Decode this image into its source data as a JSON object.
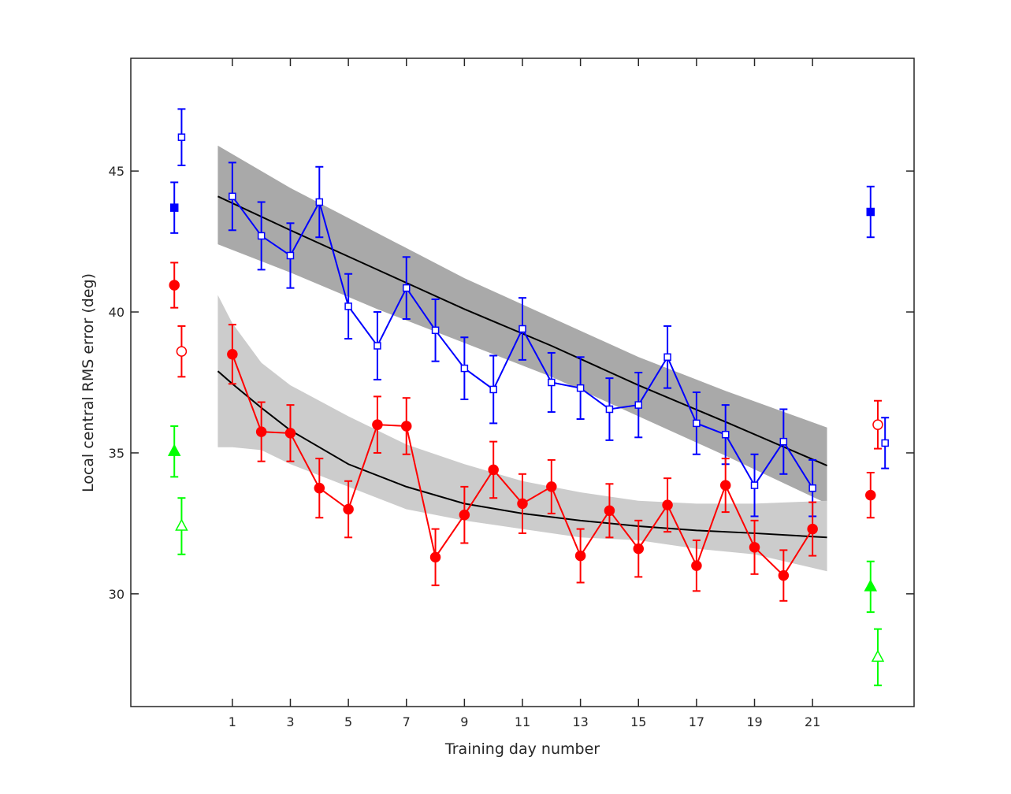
{
  "chart_data": {
    "type": "scatter",
    "title": "",
    "xlabel": "Training day number",
    "ylabel": "Local central RMS error (deg)",
    "xlim": [
      -2.5,
      24.5
    ],
    "ylim": [
      26,
      49
    ],
    "xticks": [
      1,
      3,
      5,
      7,
      9,
      11,
      13,
      15,
      17,
      19,
      21
    ],
    "yticks": [
      30,
      35,
      40,
      45
    ],
    "grid": false,
    "colors": {
      "blue": "#0000ff",
      "red": "#ff0000",
      "green": "#00ff00",
      "fit": "#000000",
      "band_blue": "#a9a9a9",
      "band_red": "#cccccc"
    },
    "training_series": [
      {
        "color": "#0000ff",
        "marker": "square-open",
        "x": [
          1,
          2,
          3,
          4,
          5,
          6,
          7,
          8,
          9,
          10,
          11,
          12,
          13,
          14,
          15,
          16,
          17,
          18,
          19,
          20,
          21
        ],
        "y": [
          44.1,
          42.7,
          42.0,
          43.9,
          40.2,
          38.8,
          40.85,
          39.35,
          38.0,
          37.25,
          39.4,
          37.5,
          37.3,
          36.55,
          36.7,
          38.4,
          36.05,
          35.65,
          33.85,
          35.4,
          33.75
        ],
        "err": [
          1.2,
          1.2,
          1.15,
          1.25,
          1.15,
          1.2,
          1.1,
          1.1,
          1.1,
          1.2,
          1.1,
          1.05,
          1.1,
          1.1,
          1.15,
          1.1,
          1.1,
          1.05,
          1.1,
          1.15,
          1.0
        ]
      },
      {
        "color": "#ff0000",
        "marker": "circle-filled",
        "x": [
          1,
          2,
          3,
          4,
          5,
          6,
          7,
          8,
          9,
          10,
          11,
          12,
          13,
          14,
          15,
          16,
          17,
          18,
          19,
          20,
          21
        ],
        "y": [
          38.5,
          35.75,
          35.7,
          33.75,
          33.0,
          36.0,
          35.95,
          31.3,
          32.8,
          34.4,
          33.2,
          33.8,
          31.35,
          32.95,
          31.6,
          33.15,
          31.0,
          33.85,
          31.65,
          30.65,
          32.3
        ],
        "err": [
          1.05,
          1.05,
          1.0,
          1.05,
          1.0,
          1.0,
          1.0,
          1.0,
          1.0,
          1.0,
          1.05,
          0.95,
          0.95,
          0.95,
          1.0,
          0.95,
          0.9,
          0.95,
          0.95,
          0.9,
          0.95
        ]
      }
    ],
    "fits": [
      {
        "color": "#000000",
        "band_color": "#a9a9a9",
        "x": [
          0.5,
          3,
          6,
          9,
          12,
          15,
          18,
          21.5
        ],
        "y": [
          44.1,
          42.9,
          41.5,
          40.1,
          38.8,
          37.4,
          36.1,
          34.55
        ],
        "upper": [
          45.9,
          44.4,
          42.8,
          41.2,
          39.8,
          38.4,
          37.2,
          35.9
        ],
        "lower": [
          42.4,
          41.4,
          40.1,
          38.9,
          37.7,
          36.3,
          34.9,
          33.2
        ]
      },
      {
        "color": "#000000",
        "band_color": "#cccccc",
        "x": [
          0.5,
          1,
          2,
          3,
          5,
          7,
          9,
          11,
          13,
          15,
          17,
          19,
          21.5
        ],
        "y": [
          37.9,
          37.45,
          36.6,
          35.8,
          34.6,
          33.8,
          33.2,
          32.85,
          32.6,
          32.4,
          32.25,
          32.15,
          32.0
        ],
        "upper": [
          40.6,
          39.6,
          38.2,
          37.4,
          36.3,
          35.3,
          34.6,
          34.0,
          33.6,
          33.3,
          33.2,
          33.2,
          33.3
        ],
        "lower": [
          35.2,
          35.2,
          35.1,
          34.6,
          33.8,
          33.0,
          32.6,
          32.3,
          32.0,
          31.9,
          31.6,
          31.4,
          30.8
        ]
      }
    ],
    "test_points": [
      {
        "phase": "pre",
        "x": -1,
        "y": 43.7,
        "err": 0.9,
        "color": "#0000ff",
        "marker": "square-filled"
      },
      {
        "phase": "pre",
        "x": -0.75,
        "y": 46.2,
        "err": 1.0,
        "color": "#0000ff",
        "marker": "square-open"
      },
      {
        "phase": "pre",
        "x": -1,
        "y": 40.95,
        "err": 0.8,
        "color": "#ff0000",
        "marker": "circle-filled"
      },
      {
        "phase": "pre",
        "x": -0.75,
        "y": 38.6,
        "err": 0.9,
        "color": "#ff0000",
        "marker": "circle-open"
      },
      {
        "phase": "pre",
        "x": -1,
        "y": 35.05,
        "err": 0.9,
        "color": "#00ff00",
        "marker": "triangle-filled"
      },
      {
        "phase": "pre",
        "x": -0.75,
        "y": 32.4,
        "err": 1.0,
        "color": "#00ff00",
        "marker": "triangle-open"
      },
      {
        "phase": "post",
        "x": 23,
        "y": 43.55,
        "err": 0.9,
        "color": "#0000ff",
        "marker": "square-filled"
      },
      {
        "phase": "post",
        "x": 23.5,
        "y": 35.35,
        "err": 0.9,
        "color": "#0000ff",
        "marker": "square-open"
      },
      {
        "phase": "post",
        "x": 23,
        "y": 33.5,
        "err": 0.8,
        "color": "#ff0000",
        "marker": "circle-filled"
      },
      {
        "phase": "post",
        "x": 23.25,
        "y": 36.0,
        "err": 0.85,
        "color": "#ff0000",
        "marker": "circle-open"
      },
      {
        "phase": "post",
        "x": 23,
        "y": 30.25,
        "err": 0.9,
        "color": "#00ff00",
        "marker": "triangle-filled"
      },
      {
        "phase": "post",
        "x": 23.25,
        "y": 27.75,
        "err": 1.0,
        "color": "#00ff00",
        "marker": "triangle-open"
      }
    ]
  }
}
